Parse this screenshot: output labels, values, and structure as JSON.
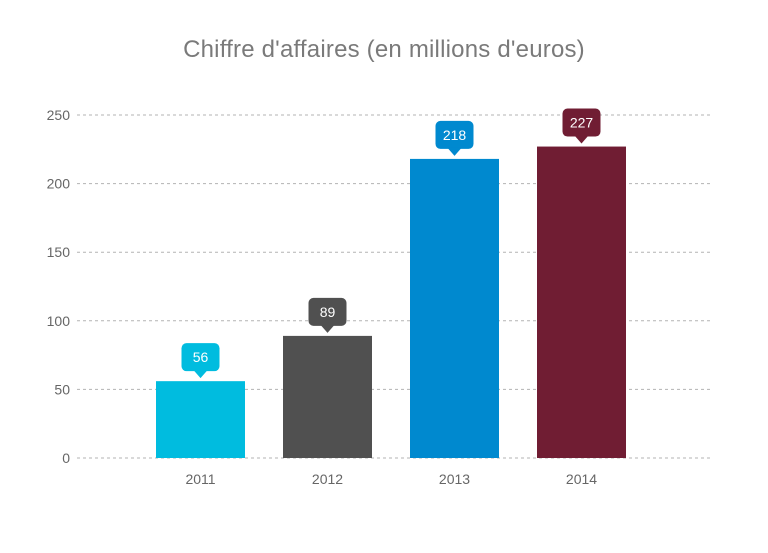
{
  "chart_data": {
    "type": "bar",
    "title": "Chiffre d'affaires (en millions d'euros)",
    "xlabel": "",
    "ylabel": "",
    "categories": [
      "2011",
      "2012",
      "2013",
      "2014"
    ],
    "values": [
      56,
      89,
      218,
      227
    ],
    "data_labels": [
      "56",
      "89",
      "218",
      "227"
    ],
    "colors": [
      "#00bcdf",
      "#505050",
      "#0089cf",
      "#701d33"
    ],
    "ylim": [
      0,
      250
    ],
    "yticks": [
      0,
      50,
      100,
      150,
      200,
      250
    ],
    "ytick_labels": [
      "0",
      "50",
      "100",
      "150",
      "200",
      "250"
    ],
    "grid": true,
    "gridline_color": "#b3b3b3",
    "title_color": "#7a7a7a",
    "tick_label_color": "#666666"
  }
}
